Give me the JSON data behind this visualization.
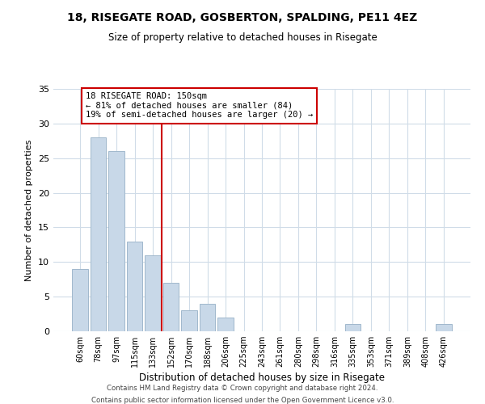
{
  "title1": "18, RISEGATE ROAD, GOSBERTON, SPALDING, PE11 4EZ",
  "title2": "Size of property relative to detached houses in Risegate",
  "xlabel": "Distribution of detached houses by size in Risegate",
  "ylabel": "Number of detached properties",
  "bin_labels": [
    "60sqm",
    "78sqm",
    "97sqm",
    "115sqm",
    "133sqm",
    "152sqm",
    "170sqm",
    "188sqm",
    "206sqm",
    "225sqm",
    "243sqm",
    "261sqm",
    "280sqm",
    "298sqm",
    "316sqm",
    "335sqm",
    "353sqm",
    "371sqm",
    "389sqm",
    "408sqm",
    "426sqm"
  ],
  "bar_heights": [
    9,
    28,
    26,
    13,
    11,
    7,
    3,
    4,
    2,
    0,
    0,
    0,
    0,
    0,
    0,
    1,
    0,
    0,
    0,
    0,
    1
  ],
  "bar_color": "#c8d8e8",
  "bar_edge_color": "#a0b8cc",
  "vline_index": 5,
  "vline_color": "#cc0000",
  "annotation_title": "18 RISEGATE ROAD: 150sqm",
  "annotation_line1": "← 81% of detached houses are smaller (84)",
  "annotation_line2": "19% of semi-detached houses are larger (20) →",
  "annotation_box_color": "#ffffff",
  "annotation_box_edge_color": "#cc0000",
  "ylim": [
    0,
    35
  ],
  "yticks": [
    0,
    5,
    10,
    15,
    20,
    25,
    30,
    35
  ],
  "grid_color": "#d0dce8",
  "footer1": "Contains HM Land Registry data © Crown copyright and database right 2024.",
  "footer2": "Contains public sector information licensed under the Open Government Licence v3.0."
}
